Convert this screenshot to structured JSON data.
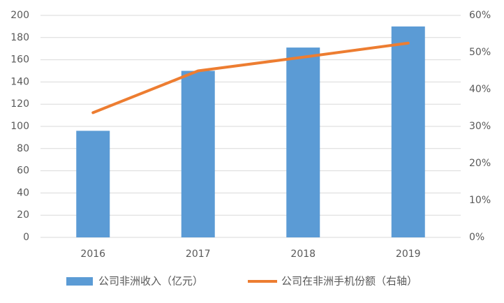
{
  "chart_data": {
    "type": "bar",
    "categories": [
      "2016",
      "2017",
      "2018",
      "2019"
    ],
    "series": [
      {
        "name": "公司非洲收入（亿元）",
        "type": "bar",
        "color": "#5b9bd5",
        "values": [
          96,
          150,
          171,
          190
        ]
      },
      {
        "name": "公司在非洲手机份额（右轴）",
        "type": "line",
        "color": "#ed7d31",
        "axis": "y2",
        "values": [
          33.7,
          45,
          48.7,
          52.5
        ]
      }
    ],
    "ylim": [
      0,
      200
    ],
    "yticks": [
      0,
      20,
      40,
      60,
      80,
      100,
      120,
      140,
      160,
      180,
      200
    ],
    "y2lim": [
      0,
      60
    ],
    "y2ticks": [
      {
        "value": 0,
        "label": "0%"
      },
      {
        "value": 10,
        "label": "10%"
      },
      {
        "value": 20,
        "label": "20%"
      },
      {
        "value": 30,
        "label": "30%"
      },
      {
        "value": 40,
        "label": "40%"
      },
      {
        "value": 50,
        "label": "50%"
      },
      {
        "value": 60,
        "label": "60%"
      }
    ],
    "grid": true,
    "legend": "bottom"
  }
}
